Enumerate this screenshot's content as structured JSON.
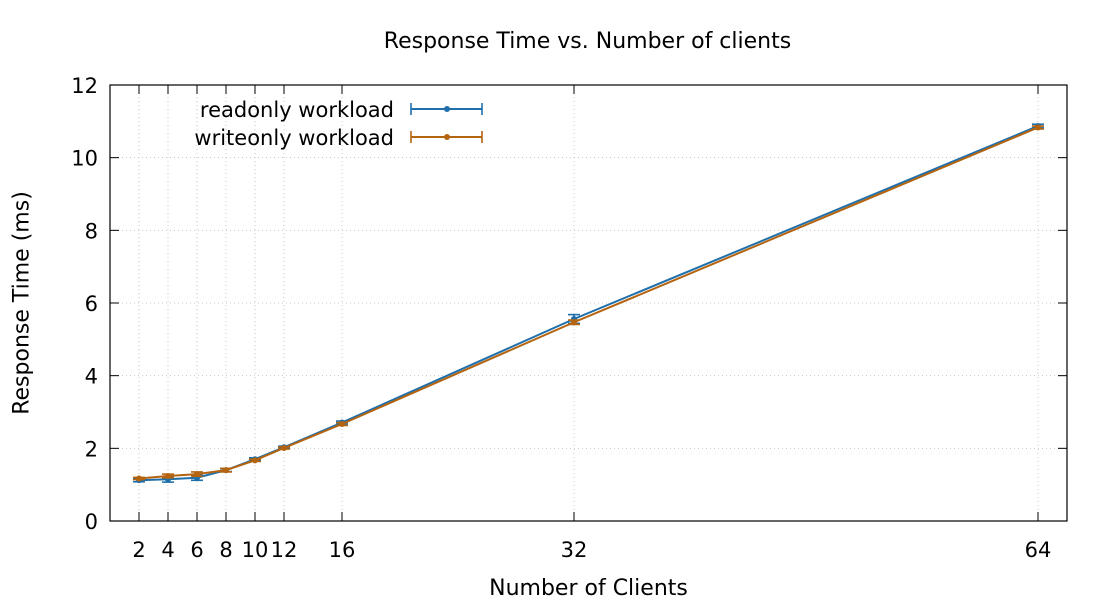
{
  "chart_data": {
    "type": "line",
    "title": "Response Time vs. Number of clients",
    "xlabel": "Number of Clients",
    "ylabel": "Response Time (ms)",
    "xlim": [
      0,
      66
    ],
    "ylim": [
      0,
      12
    ],
    "xticks": [
      2,
      4,
      6,
      8,
      10,
      12,
      16,
      32,
      64
    ],
    "yticks": [
      0,
      2,
      4,
      6,
      8,
      10,
      12
    ],
    "grid": true,
    "legend_position": "top-left",
    "x": [
      2,
      4,
      6,
      8,
      10,
      12,
      16,
      32,
      64
    ],
    "series": [
      {
        "name": "readonly workload",
        "color": "#1f6fab",
        "values": [
          1.12,
          1.15,
          1.19,
          1.4,
          1.7,
          2.03,
          2.71,
          5.56,
          10.87
        ],
        "errors": [
          0.04,
          0.08,
          0.07,
          0.04,
          0.04,
          0.03,
          0.04,
          0.12,
          0.05
        ]
      },
      {
        "name": "writeonly workload",
        "color": "#b4640f",
        "values": [
          1.17,
          1.24,
          1.29,
          1.4,
          1.67,
          2.01,
          2.67,
          5.47,
          10.83
        ],
        "errors": [
          0.03,
          0.05,
          0.06,
          0.05,
          0.03,
          0.03,
          0.04,
          0.06,
          0.04
        ]
      }
    ]
  }
}
